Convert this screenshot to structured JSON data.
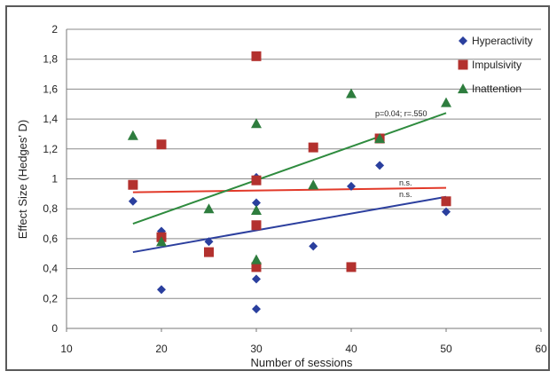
{
  "chart_data": {
    "type": "scatter",
    "title": "",
    "xlabel": "Number of sessions",
    "ylabel": "Effect Size (Hedges' D)",
    "xlim": [
      10,
      60
    ],
    "ylim": [
      0,
      2
    ],
    "xticks": [
      10,
      20,
      30,
      40,
      50,
      60
    ],
    "xtick_labels": [
      "10",
      "20",
      "30",
      "40",
      "50",
      "60"
    ],
    "yticks": [
      0,
      0.2,
      0.4,
      0.6,
      0.8,
      1,
      1.2,
      1.4,
      1.6,
      1.8,
      2
    ],
    "ytick_labels": [
      "0",
      "0,2",
      "0,4",
      "0,6",
      "0,8",
      "1",
      "1,2",
      "1,4",
      "1,6",
      "1,8",
      "2"
    ],
    "grid": "horizontal",
    "legend_position": "top-right",
    "series": [
      {
        "name": "Hyperactivity",
        "marker": "diamond",
        "color": "#2a3f9e",
        "points": [
          [
            17,
            0.85
          ],
          [
            20,
            0.26
          ],
          [
            20,
            0.65
          ],
          [
            25,
            0.58
          ],
          [
            30,
            0.13
          ],
          [
            30,
            0.33
          ],
          [
            30,
            0.84
          ],
          [
            30,
            1.01
          ],
          [
            36,
            0.55
          ],
          [
            40,
            0.95
          ],
          [
            43,
            1.09
          ],
          [
            50,
            0.78
          ]
        ],
        "trend": {
          "x": [
            17,
            50
          ],
          "y": [
            0.51,
            0.88
          ],
          "color": "#2c3f9e",
          "label": "n.s."
        }
      },
      {
        "name": "Impulsivity",
        "marker": "square",
        "color": "#b3312e",
        "points": [
          [
            17,
            0.96
          ],
          [
            20,
            1.23
          ],
          [
            20,
            0.61
          ],
          [
            25,
            0.51
          ],
          [
            30,
            1.82
          ],
          [
            30,
            0.99
          ],
          [
            30,
            0.69
          ],
          [
            30,
            0.41
          ],
          [
            36,
            1.21
          ],
          [
            40,
            0.41
          ],
          [
            43,
            1.27
          ],
          [
            50,
            0.85
          ]
        ],
        "trend": {
          "x": [
            17,
            50
          ],
          "y": [
            0.91,
            0.94
          ],
          "color": "#e23a2a",
          "label": "n.s."
        }
      },
      {
        "name": "Inattention",
        "marker": "triangle",
        "color": "#2e7d3e",
        "points": [
          [
            17,
            1.29
          ],
          [
            20,
            0.58
          ],
          [
            25,
            0.8
          ],
          [
            30,
            1.37
          ],
          [
            30,
            0.79
          ],
          [
            30,
            0.46
          ],
          [
            36,
            0.96
          ],
          [
            40,
            1.57
          ],
          [
            43,
            1.27
          ],
          [
            50,
            1.51
          ]
        ],
        "trend": {
          "x": [
            17,
            50
          ],
          "y": [
            0.7,
            1.44
          ],
          "color": "#2e8b3e",
          "label": "p=0.04; r=.550"
        }
      }
    ]
  }
}
